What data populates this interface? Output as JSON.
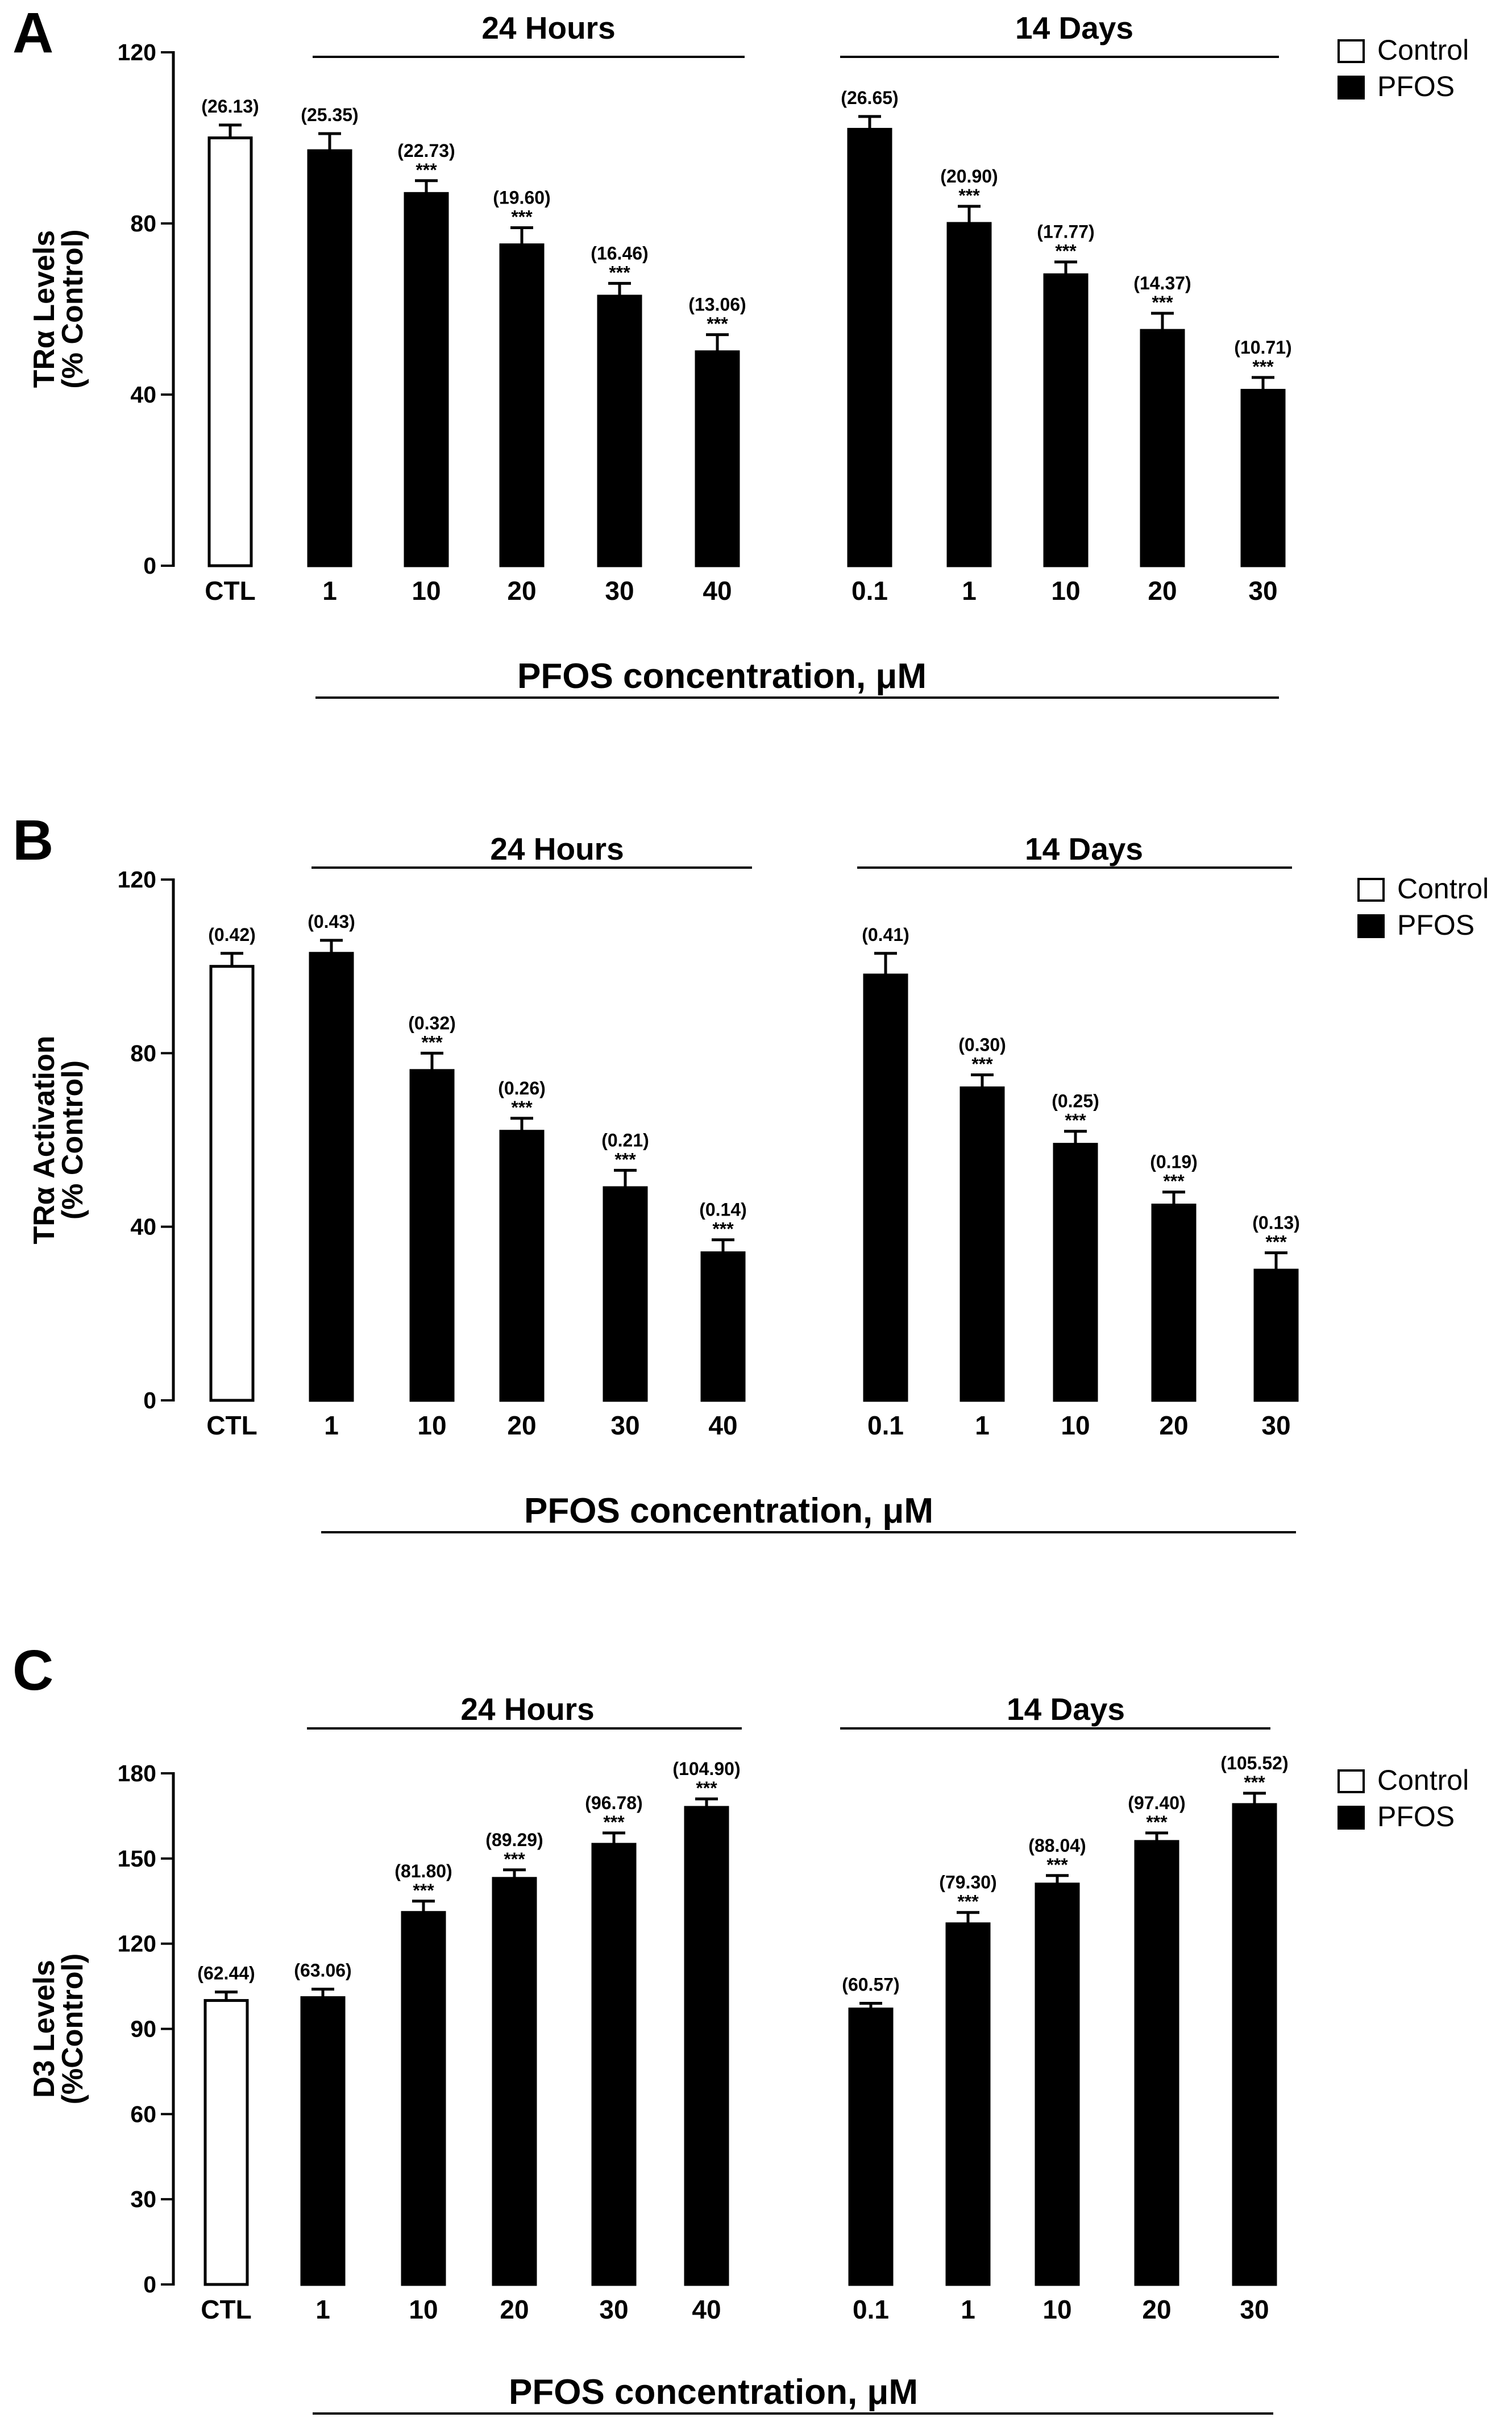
{
  "colors": {
    "pfos": "#000000",
    "control": "#ffffff",
    "stroke": "#000000"
  },
  "chart_data": [
    {
      "type": "bar",
      "panel": "A",
      "ylabel": "TRα Levels",
      "ylabel2": "(% Control)",
      "xlabel": "PFOS concentration, μM",
      "group_labels": [
        "24 Hours",
        "14 Days"
      ],
      "legend": [
        "Control",
        "PFOS"
      ],
      "ylim": [
        0,
        120
      ],
      "yticks": [
        0,
        40,
        80,
        120
      ],
      "categories": [
        "CTL",
        "1",
        "10",
        "20",
        "30",
        "40",
        "0.1",
        "1",
        "10",
        "20",
        "30"
      ],
      "values": [
        100,
        97,
        87,
        75,
        63,
        50,
        102,
        80,
        68,
        55,
        41
      ],
      "errors": [
        3,
        4,
        3,
        4,
        3,
        4,
        3,
        4,
        3,
        4,
        3
      ],
      "value_labels": [
        "(26.13)",
        "(25.35)",
        "(22.73)",
        "(19.60)",
        "(16.46)",
        "(13.06)",
        "(26.65)",
        "(20.90)",
        "(17.77)",
        "(14.37)",
        "(10.71)"
      ],
      "significance": [
        "",
        "",
        "***",
        "***",
        "***",
        "***",
        "",
        "***",
        "***",
        "***",
        "***"
      ]
    },
    {
      "type": "bar",
      "panel": "B",
      "ylabel": "TRα Activation",
      "ylabel2": "(% Control)",
      "xlabel": "PFOS concentration, μM",
      "group_labels": [
        "24 Hours",
        "14 Days"
      ],
      "legend": [
        "Control",
        "PFOS"
      ],
      "ylim": [
        0,
        120
      ],
      "yticks": [
        0,
        40,
        80,
        120
      ],
      "categories": [
        "CTL",
        "1",
        "10",
        "20",
        "30",
        "40",
        "0.1",
        "1",
        "10",
        "20",
        "30"
      ],
      "values": [
        100,
        103,
        76,
        62,
        49,
        34,
        98,
        72,
        59,
        45,
        30
      ],
      "errors": [
        3,
        3,
        4,
        3,
        4,
        3,
        5,
        3,
        3,
        3,
        4
      ],
      "value_labels": [
        "(0.42)",
        "(0.43)",
        "(0.32)",
        "(0.26)",
        "(0.21)",
        "(0.14)",
        "(0.41)",
        "(0.30)",
        "(0.25)",
        "(0.19)",
        "(0.13)"
      ],
      "significance": [
        "",
        "",
        "***",
        "***",
        "***",
        "***",
        "",
        "***",
        "***",
        "***",
        "***"
      ]
    },
    {
      "type": "bar",
      "panel": "C",
      "ylabel": "D3 Levels",
      "ylabel2": "(%Control)",
      "xlabel": "PFOS concentration, μM",
      "group_labels": [
        "24 Hours",
        "14 Days"
      ],
      "legend": [
        "Control",
        "PFOS"
      ],
      "ylim": [
        0,
        180
      ],
      "yticks": [
        0,
        30,
        60,
        90,
        120,
        150,
        180
      ],
      "categories": [
        "CTL",
        "1",
        "10",
        "20",
        "30",
        "40",
        "0.1",
        "1",
        "10",
        "20",
        "30"
      ],
      "values": [
        100,
        101,
        131,
        143,
        155,
        168,
        97,
        127,
        141,
        156,
        169
      ],
      "errors": [
        3,
        3,
        4,
        3,
        4,
        3,
        2,
        4,
        3,
        3,
        4
      ],
      "value_labels": [
        "(62.44)",
        "(63.06)",
        "(81.80)",
        "(89.29)",
        "(96.78)",
        "(104.90)",
        "(60.57)",
        "(79.30)",
        "(88.04)",
        "(97.40)",
        "(105.52)"
      ],
      "significance": [
        "",
        "",
        "***",
        "***",
        "***",
        "***",
        "",
        "***",
        "***",
        "***",
        "***"
      ]
    }
  ]
}
